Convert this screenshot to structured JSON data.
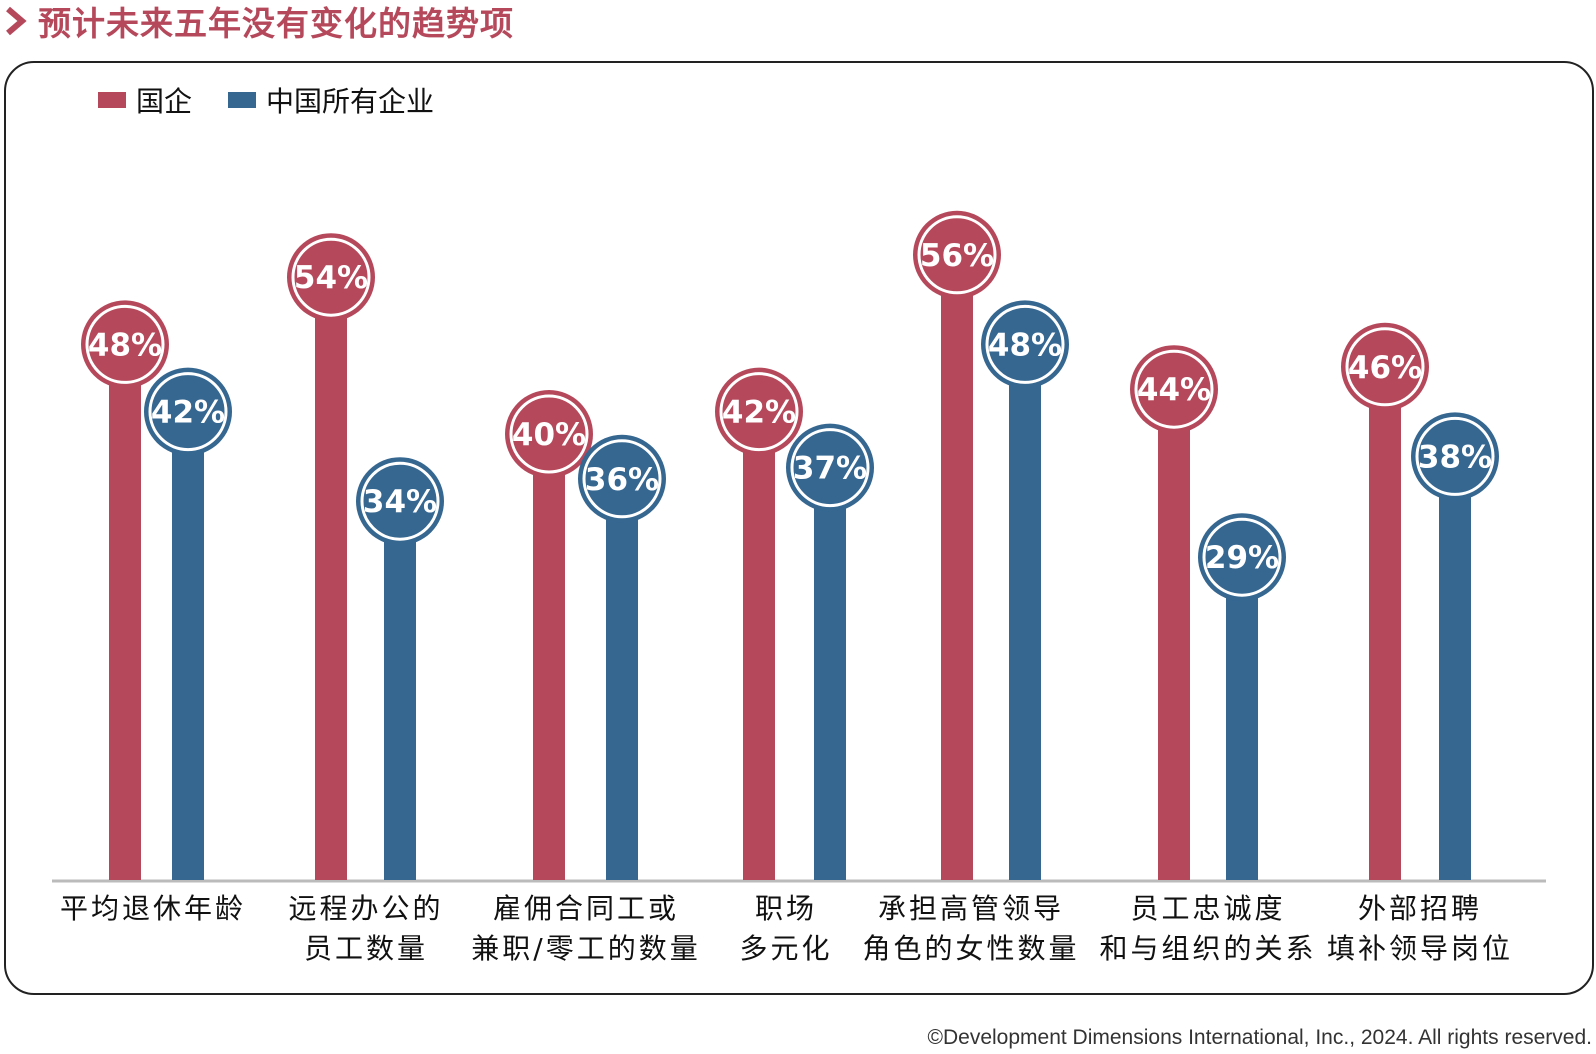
{
  "title": "预计未来五年没有变化的趋势项",
  "colors": {
    "soe": "#b5495b",
    "all": "#356791",
    "title": "#b5495b",
    "axis": "#bbbbbb"
  },
  "legend": {
    "soe": "国企",
    "all": "中国所有企业"
  },
  "chart_data": {
    "type": "bar",
    "title": "预计未来五年没有变化的趋势项",
    "categories": [
      [
        "平均退休年龄"
      ],
      [
        "远程办公的",
        "员工数量"
      ],
      [
        "雇佣合同工或",
        "兼职/零工的数量"
      ],
      [
        "职场",
        "多元化"
      ],
      [
        "承担高管领导",
        "角色的女性数量"
      ],
      [
        "员工忠诚度",
        "和与组织的关系"
      ],
      [
        "外部招聘",
        "填补领导岗位"
      ]
    ],
    "series": [
      {
        "name": "国企",
        "values": [
          48,
          54,
          40,
          42,
          56,
          44,
          46
        ],
        "labels": [
          "48%",
          "54%",
          "40%",
          "42%",
          "56%",
          "44%",
          "46%"
        ]
      },
      {
        "name": "中国所有企业",
        "values": [
          42,
          34,
          36,
          37,
          48,
          29,
          38
        ],
        "labels": [
          "42%",
          "34%",
          "36%",
          "37%",
          "48%",
          "29%",
          "38%"
        ]
      }
    ],
    "ylim": [
      0,
      60
    ],
    "unit": "%",
    "xlabel": "",
    "ylabel": "",
    "legend_position": "top-left"
  },
  "copyright": "©Development Dimensions International, Inc., 2024. All rights reserved."
}
